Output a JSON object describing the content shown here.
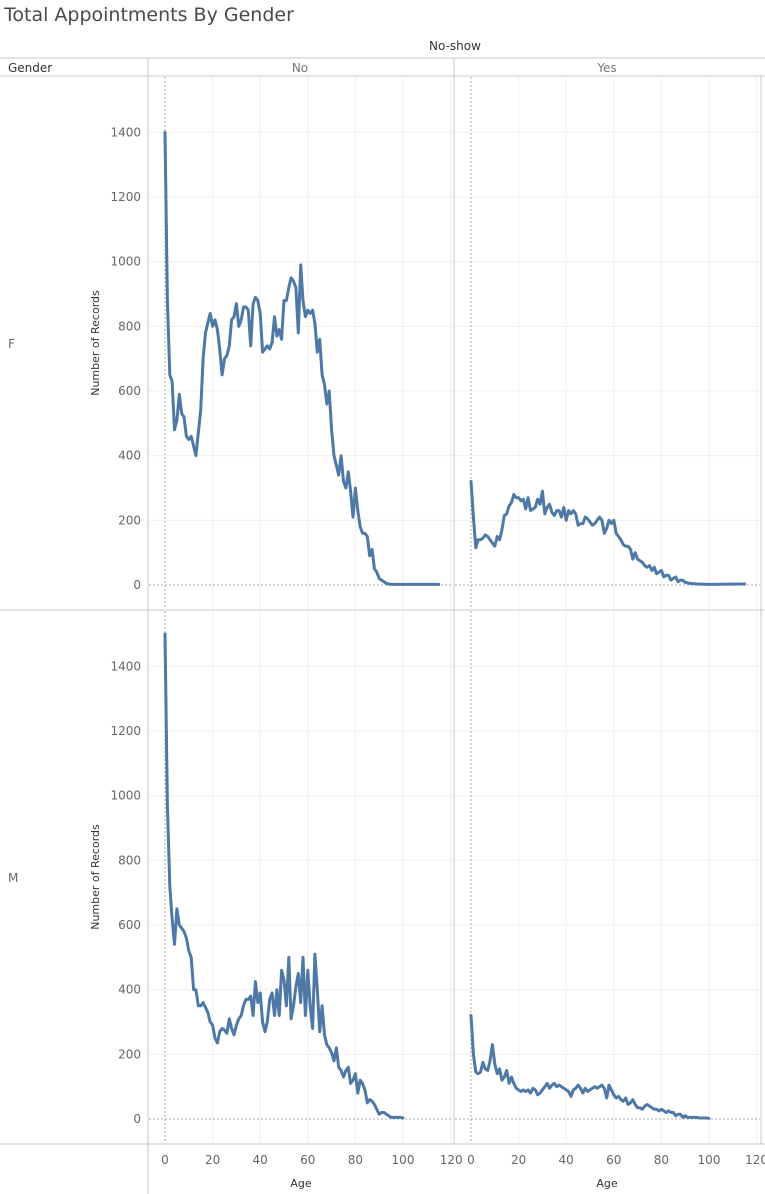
{
  "chart_data": {
    "type": "line",
    "title": "Total Appointments By Gender",
    "column_field": "No-show",
    "row_field": "Gender",
    "columns": [
      "No",
      "Yes"
    ],
    "rows": [
      "F",
      "M"
    ],
    "xlabel": "Age",
    "ylabel": "Number of Records",
    "xlim": [
      -5,
      120
    ],
    "ylim": [
      -50,
      1560
    ],
    "xticks": [
      0,
      20,
      40,
      60,
      80,
      100,
      120
    ],
    "yticks": [
      0,
      200,
      400,
      600,
      800,
      1000,
      1200,
      1400
    ],
    "grid": true,
    "series_color": "#4e79a7",
    "panels": [
      {
        "row": "F",
        "column": "No",
        "x": [
          0,
          1,
          2,
          3,
          4,
          5,
          6,
          7,
          8,
          9,
          10,
          11,
          12,
          13,
          14,
          15,
          16,
          17,
          18,
          19,
          20,
          21,
          22,
          23,
          24,
          25,
          26,
          27,
          28,
          29,
          30,
          31,
          32,
          33,
          34,
          35,
          36,
          37,
          38,
          39,
          40,
          41,
          42,
          43,
          44,
          45,
          46,
          47,
          48,
          49,
          50,
          51,
          52,
          53,
          54,
          55,
          56,
          57,
          58,
          59,
          60,
          61,
          62,
          63,
          64,
          65,
          66,
          67,
          68,
          69,
          70,
          71,
          72,
          73,
          74,
          75,
          76,
          77,
          78,
          79,
          80,
          81,
          82,
          83,
          84,
          85,
          86,
          87,
          88,
          89,
          90,
          91,
          92,
          93,
          94,
          95,
          96,
          97,
          98,
          99,
          100,
          102,
          115
        ],
        "y": [
          1400,
          880,
          650,
          630,
          480,
          510,
          590,
          530,
          520,
          460,
          450,
          460,
          430,
          400,
          470,
          540,
          700,
          780,
          810,
          840,
          800,
          820,
          790,
          730,
          650,
          700,
          710,
          740,
          820,
          830,
          870,
          800,
          820,
          860,
          860,
          850,
          740,
          870,
          890,
          880,
          840,
          720,
          730,
          740,
          730,
          750,
          830,
          770,
          790,
          760,
          880,
          880,
          920,
          950,
          940,
          920,
          780,
          990,
          880,
          830,
          850,
          840,
          850,
          810,
          720,
          760,
          650,
          620,
          560,
          600,
          480,
          400,
          370,
          340,
          400,
          320,
          300,
          350,
          290,
          210,
          300,
          230,
          180,
          160,
          160,
          150,
          90,
          110,
          50,
          40,
          20,
          15,
          10,
          5,
          3,
          2,
          2,
          2,
          2,
          2,
          2,
          2,
          2
        ]
      },
      {
        "row": "F",
        "column": "Yes",
        "x": [
          0,
          1,
          2,
          3,
          4,
          5,
          6,
          7,
          8,
          9,
          10,
          11,
          12,
          13,
          14,
          15,
          16,
          17,
          18,
          19,
          20,
          21,
          22,
          23,
          24,
          25,
          26,
          27,
          28,
          29,
          30,
          31,
          32,
          33,
          34,
          35,
          36,
          37,
          38,
          39,
          40,
          41,
          42,
          43,
          44,
          45,
          46,
          47,
          48,
          49,
          50,
          51,
          52,
          53,
          54,
          55,
          56,
          57,
          58,
          59,
          60,
          61,
          62,
          63,
          64,
          65,
          66,
          67,
          68,
          69,
          70,
          71,
          72,
          73,
          74,
          75,
          76,
          77,
          78,
          79,
          80,
          81,
          82,
          83,
          84,
          85,
          86,
          87,
          88,
          89,
          90,
          92,
          95,
          100,
          115
        ],
        "y": [
          320,
          210,
          115,
          140,
          140,
          145,
          155,
          150,
          140,
          130,
          120,
          150,
          140,
          170,
          215,
          220,
          245,
          255,
          280,
          270,
          270,
          260,
          265,
          235,
          270,
          230,
          235,
          240,
          265,
          250,
          290,
          220,
          240,
          250,
          225,
          215,
          230,
          230,
          210,
          240,
          200,
          230,
          220,
          230,
          220,
          185,
          190,
          190,
          210,
          205,
          195,
          185,
          190,
          200,
          210,
          200,
          160,
          175,
          200,
          190,
          200,
          160,
          150,
          140,
          125,
          120,
          120,
          110,
          80,
          100,
          80,
          75,
          70,
          60,
          55,
          60,
          45,
          55,
          35,
          40,
          45,
          25,
          30,
          30,
          15,
          20,
          25,
          10,
          15,
          15,
          8,
          5,
          3,
          2,
          3
        ]
      },
      {
        "row": "M",
        "column": "No",
        "x": [
          0,
          1,
          2,
          3,
          4,
          5,
          6,
          7,
          8,
          9,
          10,
          11,
          12,
          13,
          14,
          15,
          16,
          17,
          18,
          19,
          20,
          21,
          22,
          23,
          24,
          25,
          26,
          27,
          28,
          29,
          30,
          31,
          32,
          33,
          34,
          35,
          36,
          37,
          38,
          39,
          40,
          41,
          42,
          43,
          44,
          45,
          46,
          47,
          48,
          49,
          50,
          51,
          52,
          53,
          54,
          55,
          56,
          57,
          58,
          59,
          60,
          61,
          62,
          63,
          64,
          65,
          66,
          67,
          68,
          69,
          70,
          71,
          72,
          73,
          74,
          75,
          76,
          77,
          78,
          79,
          80,
          81,
          82,
          83,
          84,
          85,
          86,
          87,
          88,
          89,
          90,
          91,
          92,
          93,
          94,
          95,
          96,
          97,
          98,
          99,
          100
        ],
        "y": [
          1500,
          970,
          720,
          620,
          540,
          650,
          600,
          590,
          580,
          560,
          520,
          500,
          400,
          400,
          350,
          350,
          360,
          345,
          330,
          300,
          290,
          250,
          235,
          270,
          280,
          275,
          265,
          310,
          280,
          260,
          290,
          310,
          320,
          350,
          370,
          370,
          380,
          320,
          425,
          360,
          390,
          300,
          270,
          300,
          370,
          390,
          320,
          400,
          320,
          460,
          430,
          350,
          500,
          310,
          350,
          410,
          450,
          360,
          500,
          320,
          460,
          350,
          280,
          510,
          400,
          270,
          350,
          260,
          230,
          220,
          205,
          180,
          220,
          160,
          150,
          130,
          150,
          160,
          110,
          120,
          140,
          80,
          120,
          110,
          90,
          50,
          60,
          55,
          45,
          30,
          15,
          20,
          20,
          15,
          10,
          5,
          5,
          5,
          5,
          5,
          3
        ]
      },
      {
        "row": "M",
        "column": "Yes",
        "x": [
          0,
          1,
          2,
          3,
          4,
          5,
          6,
          7,
          8,
          9,
          10,
          11,
          12,
          13,
          14,
          15,
          16,
          17,
          18,
          19,
          20,
          21,
          22,
          23,
          24,
          25,
          26,
          27,
          28,
          29,
          30,
          31,
          32,
          33,
          34,
          35,
          36,
          37,
          38,
          39,
          40,
          41,
          42,
          43,
          44,
          45,
          46,
          47,
          48,
          49,
          50,
          51,
          52,
          53,
          54,
          55,
          56,
          57,
          58,
          59,
          60,
          61,
          62,
          63,
          64,
          65,
          66,
          67,
          68,
          69,
          70,
          71,
          72,
          73,
          74,
          75,
          76,
          77,
          78,
          79,
          80,
          81,
          82,
          83,
          84,
          85,
          86,
          87,
          88,
          89,
          90,
          91,
          92,
          93,
          94,
          95,
          96,
          97,
          98,
          99,
          100
        ],
        "y": [
          320,
          200,
          145,
          140,
          145,
          175,
          155,
          150,
          180,
          230,
          170,
          140,
          155,
          120,
          130,
          150,
          110,
          130,
          110,
          95,
          90,
          85,
          90,
          85,
          90,
          80,
          95,
          90,
          75,
          80,
          90,
          100,
          110,
          95,
          105,
          110,
          100,
          105,
          100,
          95,
          90,
          85,
          70,
          90,
          95,
          105,
          95,
          80,
          95,
          85,
          90,
          95,
          100,
          95,
          100,
          105,
          95,
          65,
          105,
          90,
          75,
          65,
          70,
          60,
          55,
          65,
          45,
          50,
          60,
          45,
          35,
          35,
          30,
          40,
          45,
          40,
          35,
          30,
          30,
          25,
          30,
          25,
          20,
          25,
          20,
          20,
          10,
          15,
          15,
          5,
          10,
          5,
          5,
          5,
          5,
          5,
          3,
          3,
          3,
          3,
          2
        ]
      }
    ]
  }
}
